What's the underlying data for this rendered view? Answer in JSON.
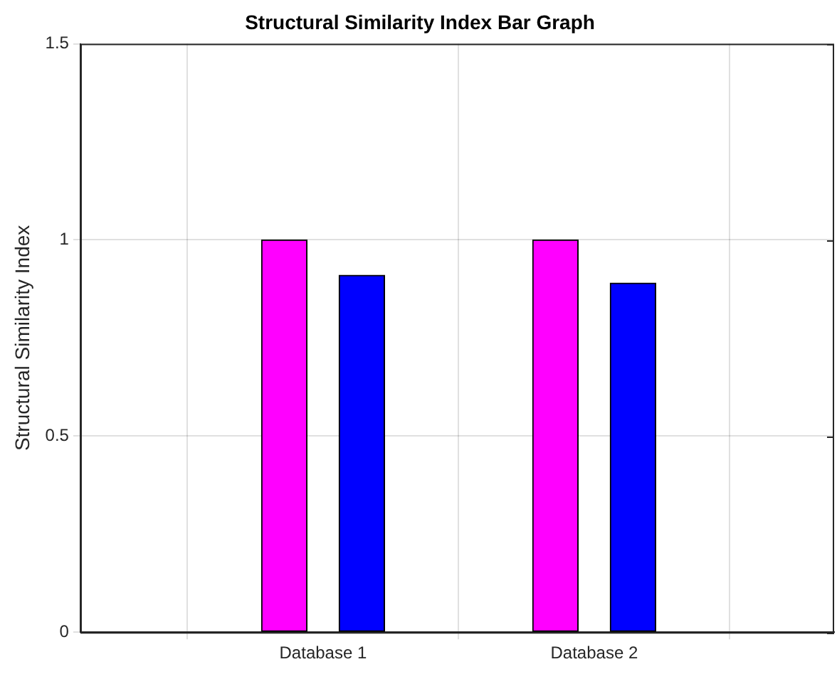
{
  "chart_data": {
    "type": "bar",
    "title": "Structural Similarity Index Bar Graph",
    "ylabel": "Structural Similarity Index",
    "categories": [
      "Database 1",
      "Database 2"
    ],
    "series": [
      {
        "color": "#ff00ff",
        "values": [
          1,
          1
        ]
      },
      {
        "color": "#0000ff",
        "values": [
          0.91,
          0.89
        ]
      }
    ],
    "ylim": [
      0,
      1.5
    ],
    "yticks": [
      0,
      0.5,
      1,
      1.5
    ],
    "grid": true,
    "legend": false
  }
}
